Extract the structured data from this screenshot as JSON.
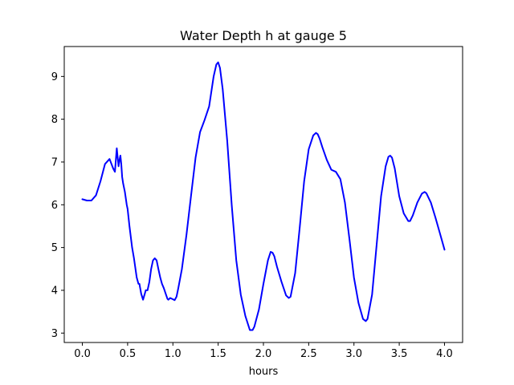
{
  "chart_data": {
    "type": "line",
    "title": "Water Depth h at gauge 5",
    "xlabel": "hours",
    "ylabel": "",
    "xlim": [
      -0.2,
      4.2
    ],
    "ylim": [
      2.78,
      9.7
    ],
    "grid": false,
    "legend": "none",
    "xticks": [
      0.0,
      0.5,
      1.0,
      1.5,
      2.0,
      2.5,
      3.0,
      3.5,
      4.0
    ],
    "xtick_labels": [
      "0.0",
      "0.5",
      "1.0",
      "1.5",
      "2.0",
      "2.5",
      "3.0",
      "3.5",
      "4.0"
    ],
    "yticks": [
      3,
      4,
      5,
      6,
      7,
      8,
      9
    ],
    "ytick_labels": [
      "3",
      "4",
      "5",
      "6",
      "7",
      "8",
      "9"
    ],
    "series": [
      {
        "color": "#0000ff",
        "x": [
          0.0,
          0.05,
          0.1,
          0.15,
          0.2,
          0.25,
          0.3,
          0.34,
          0.36,
          0.38,
          0.4,
          0.41,
          0.42,
          0.43,
          0.44,
          0.45,
          0.47,
          0.49,
          0.5,
          0.52,
          0.55,
          0.57,
          0.6,
          0.62,
          0.63,
          0.65,
          0.67,
          0.69,
          0.7,
          0.72,
          0.74,
          0.76,
          0.78,
          0.8,
          0.82,
          0.84,
          0.86,
          0.88,
          0.9,
          0.92,
          0.94,
          0.95,
          0.97,
          1.0,
          1.02,
          1.04,
          1.06,
          1.1,
          1.15,
          1.2,
          1.25,
          1.3,
          1.35,
          1.4,
          1.45,
          1.48,
          1.5,
          1.52,
          1.55,
          1.6,
          1.65,
          1.7,
          1.75,
          1.8,
          1.85,
          1.88,
          1.9,
          1.95,
          2.0,
          2.05,
          2.08,
          2.1,
          2.12,
          2.15,
          2.2,
          2.25,
          2.28,
          2.3,
          2.35,
          2.4,
          2.45,
          2.5,
          2.55,
          2.58,
          2.6,
          2.62,
          2.65,
          2.7,
          2.75,
          2.8,
          2.85,
          2.9,
          2.95,
          3.0,
          3.05,
          3.1,
          3.13,
          3.15,
          3.2,
          3.25,
          3.3,
          3.35,
          3.38,
          3.4,
          3.42,
          3.45,
          3.5,
          3.55,
          3.6,
          3.62,
          3.65,
          3.7,
          3.75,
          3.78,
          3.8,
          3.85,
          3.9,
          3.95,
          4.0
        ],
        "y": [
          6.13,
          6.1,
          6.1,
          6.22,
          6.55,
          6.95,
          7.07,
          6.85,
          6.77,
          7.32,
          6.9,
          7.05,
          7.15,
          6.95,
          6.65,
          6.5,
          6.3,
          6.0,
          5.9,
          5.5,
          5.0,
          4.75,
          4.3,
          4.15,
          4.15,
          3.92,
          3.78,
          3.92,
          4.0,
          4.0,
          4.2,
          4.5,
          4.7,
          4.75,
          4.7,
          4.5,
          4.3,
          4.15,
          4.05,
          3.92,
          3.8,
          3.78,
          3.82,
          3.79,
          3.77,
          3.85,
          4.05,
          4.5,
          5.3,
          6.2,
          7.1,
          7.7,
          7.98,
          8.3,
          9.0,
          9.28,
          9.33,
          9.2,
          8.7,
          7.5,
          6.0,
          4.7,
          3.9,
          3.4,
          3.07,
          3.07,
          3.15,
          3.55,
          4.15,
          4.7,
          4.9,
          4.88,
          4.8,
          4.55,
          4.2,
          3.88,
          3.82,
          3.85,
          4.4,
          5.45,
          6.55,
          7.3,
          7.62,
          7.68,
          7.65,
          7.55,
          7.35,
          7.05,
          6.82,
          6.77,
          6.6,
          6.05,
          5.2,
          4.3,
          3.7,
          3.33,
          3.28,
          3.33,
          3.9,
          5.05,
          6.2,
          6.9,
          7.12,
          7.15,
          7.1,
          6.85,
          6.2,
          5.8,
          5.62,
          5.62,
          5.75,
          6.05,
          6.26,
          6.3,
          6.27,
          6.05,
          5.7,
          5.33,
          4.95
        ]
      }
    ]
  }
}
